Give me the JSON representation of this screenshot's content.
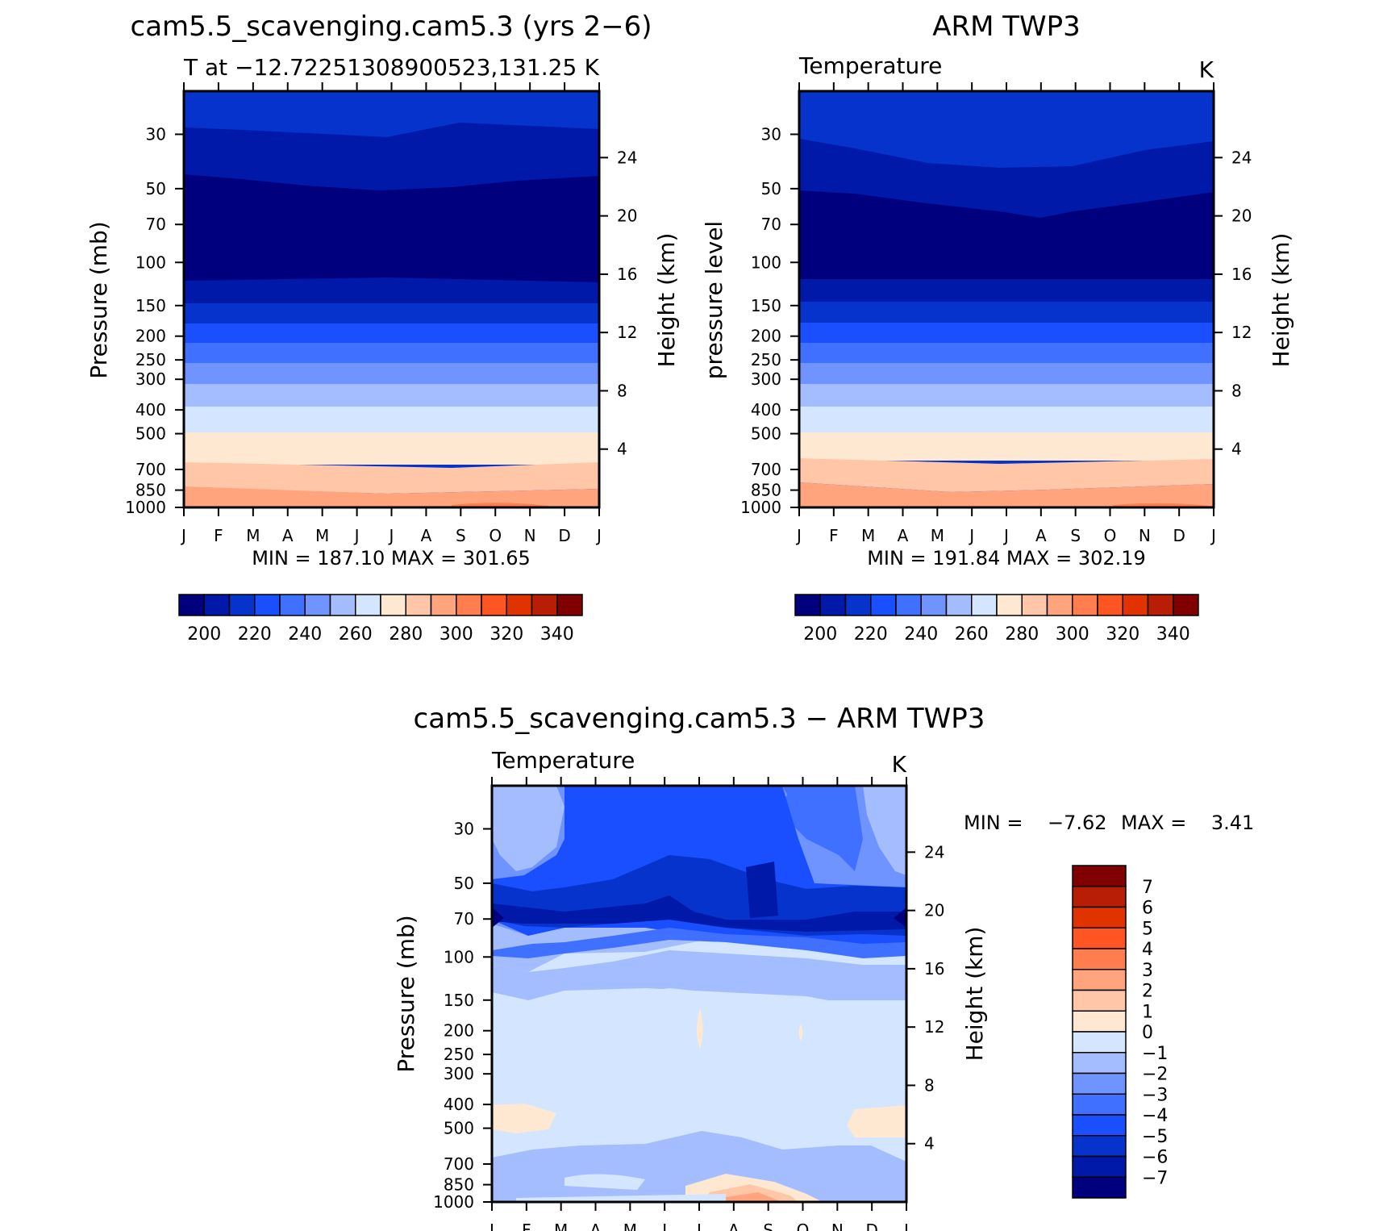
{
  "panels": {
    "model": {
      "title": "cam5.5_scavenging.cam5.3 (yrs 2−6)",
      "subtitle": "T at −12.72251308900523,131.25",
      "units": "K",
      "ylabel": "Pressure (mb)",
      "y2label": "Height (km)",
      "minmax": "MIN = 187.10 MAX = 301.65"
    },
    "obs": {
      "title": "ARM TWP3",
      "subtitle": "Temperature",
      "units": "K",
      "ylabel": "pressure level",
      "y2label": "Height (km)",
      "minmax": "MIN = 191.84 MAX = 302.19"
    },
    "diff": {
      "title": "cam5.5_scavenging.cam5.3 − ARM TWP3",
      "subtitle": "Temperature",
      "units": "K",
      "ylabel": "Pressure (mb)",
      "y2label": "Height (km)",
      "minmax_min": "MIN =    −7.62",
      "minmax_max": "MAX =    3.41"
    }
  },
  "colorbars": {
    "temperature": {
      "colors": [
        "#00007f",
        "#0019a8",
        "#0533cc",
        "#1a4fff",
        "#3f70ff",
        "#6f93ff",
        "#a3bdff",
        "#d4e6ff",
        "#ffe8d2",
        "#ffc7a8",
        "#ffa47d",
        "#ff7d4f",
        "#ff5522",
        "#e03300",
        "#b81d05",
        "#800000"
      ],
      "labels": [
        "200",
        "220",
        "240",
        "260",
        "280",
        "300",
        "320",
        "340"
      ]
    },
    "difference": {
      "colors": [
        "#00007f",
        "#0019a8",
        "#0533cc",
        "#1a4fff",
        "#3f70ff",
        "#6f93ff",
        "#a3bdff",
        "#d4e6ff",
        "#ffe8d2",
        "#ffc7a8",
        "#ffa47d",
        "#ff7d4f",
        "#ff5522",
        "#e03300",
        "#b81d05",
        "#800000"
      ],
      "labels": [
        "7",
        "6",
        "5",
        "4",
        "3",
        "2",
        "1",
        "0",
        "−1",
        "−2",
        "−3",
        "−4",
        "−5",
        "−6",
        "−7"
      ]
    }
  },
  "chart_data": [
    {
      "type": "heatmap",
      "title": "cam5.5_scavenging.cam5.3 (yrs 2−6)",
      "subtitle": "T at −12.72251308900523,131.25",
      "x": [
        "J",
        "F",
        "M",
        "A",
        "M",
        "J",
        "J",
        "A",
        "S",
        "O",
        "N",
        "D",
        "J"
      ],
      "y_pressure_ticks": [
        30,
        50,
        70,
        100,
        150,
        200,
        250,
        300,
        400,
        500,
        700,
        850,
        1000
      ],
      "y_height_ticks": [
        4,
        8,
        12,
        16,
        20,
        24
      ],
      "xlabel": "",
      "ylabel": "Pressure (mb)",
      "y2label": "Height (km)",
      "units": "K",
      "min": 187.1,
      "max": 301.65,
      "levels": [
        195,
        200,
        205,
        210,
        215,
        220,
        225,
        230,
        235,
        240,
        245,
        250,
        255,
        260,
        265,
        270,
        275,
        280,
        285,
        290,
        295,
        300,
        305,
        310,
        315,
        320,
        325,
        330,
        335,
        340
      ],
      "zonal_profile_approx": [
        {
          "pressure": 30,
          "T": 225
        },
        {
          "pressure": 50,
          "T": 210
        },
        {
          "pressure": 100,
          "T": 195
        },
        {
          "pressure": 150,
          "T": 207
        },
        {
          "pressure": 200,
          "T": 220
        },
        {
          "pressure": 300,
          "T": 237
        },
        {
          "pressure": 400,
          "T": 255
        },
        {
          "pressure": 500,
          "T": 268
        },
        {
          "pressure": 700,
          "T": 282
        },
        {
          "pressure": 850,
          "T": 292
        },
        {
          "pressure": 1000,
          "T": 300
        }
      ]
    },
    {
      "type": "heatmap",
      "title": "ARM TWP3",
      "subtitle": "Temperature",
      "x": [
        "J",
        "F",
        "M",
        "A",
        "M",
        "J",
        "J",
        "A",
        "S",
        "O",
        "N",
        "D",
        "J"
      ],
      "y_pressure_ticks": [
        30,
        50,
        70,
        100,
        150,
        200,
        250,
        300,
        400,
        500,
        700,
        850,
        1000
      ],
      "y_height_ticks": [
        4,
        8,
        12,
        16,
        20,
        24
      ],
      "xlabel": "",
      "ylabel": "pressure level",
      "y2label": "Height (km)",
      "units": "K",
      "min": 191.84,
      "max": 302.19
    },
    {
      "type": "heatmap",
      "title": "cam5.5_scavenging.cam5.3 − ARM TWP3",
      "subtitle": "Temperature",
      "x": [
        "J",
        "F",
        "M",
        "A",
        "M",
        "J",
        "J",
        "A",
        "S",
        "O",
        "N",
        "D",
        "J"
      ],
      "y_pressure_ticks": [
        30,
        50,
        70,
        100,
        150,
        200,
        250,
        300,
        400,
        500,
        700,
        850,
        1000
      ],
      "y_height_ticks": [
        4,
        8,
        12,
        16,
        20,
        24
      ],
      "xlabel": "",
      "ylabel": "Pressure (mb)",
      "y2label": "Height (km)",
      "units": "K",
      "min": -7.62,
      "max": 3.41,
      "levels": [
        -7,
        -6,
        -5,
        -4,
        -3,
        -2,
        -1,
        0,
        1,
        2,
        3,
        4,
        5,
        6,
        7
      ]
    }
  ]
}
